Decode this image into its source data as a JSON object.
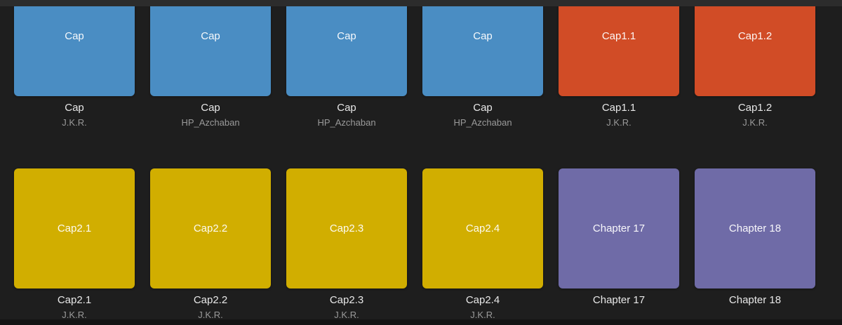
{
  "colors": {
    "background": "#1e1e1e",
    "top_bar": "#2c2c2c",
    "bottom_bar": "#141414",
    "caption_text": "#e8e8e8",
    "subtitle_text": "#9a9a9a",
    "cover_blue": "#4a8dc3",
    "cover_orange": "#d14c26",
    "cover_yellow": "#d1ae00",
    "cover_purple": "#6f6ba7"
  },
  "rows": [
    {
      "cards": [
        {
          "title": "Cap",
          "caption": "Cap",
          "subtitle": "J.K.R.",
          "color_key": "cover_blue"
        },
        {
          "title": "Cap",
          "caption": "Cap",
          "subtitle": "HP_Azchaban",
          "color_key": "cover_blue"
        },
        {
          "title": "Cap",
          "caption": "Cap",
          "subtitle": "HP_Azchaban",
          "color_key": "cover_blue"
        },
        {
          "title": "Cap",
          "caption": "Cap",
          "subtitle": "HP_Azchaban",
          "color_key": "cover_blue"
        },
        {
          "title": "Cap1.1",
          "caption": "Cap1.1",
          "subtitle": "J.K.R.",
          "color_key": "cover_orange"
        },
        {
          "title": "Cap1.2",
          "caption": "Cap1.2",
          "subtitle": "J.K.R.",
          "color_key": "cover_orange"
        }
      ]
    },
    {
      "cards": [
        {
          "title": "Cap2.1",
          "caption": "Cap2.1",
          "subtitle": "J.K.R.",
          "color_key": "cover_yellow"
        },
        {
          "title": "Cap2.2",
          "caption": "Cap2.2",
          "subtitle": "J.K.R.",
          "color_key": "cover_yellow"
        },
        {
          "title": "Cap2.3",
          "caption": "Cap2.3",
          "subtitle": "J.K.R.",
          "color_key": "cover_yellow"
        },
        {
          "title": "Cap2.4",
          "caption": "Cap2.4",
          "subtitle": "J.K.R.",
          "color_key": "cover_yellow"
        },
        {
          "title": "Chapter 17",
          "caption": "Chapter 17",
          "subtitle": "",
          "color_key": "cover_purple"
        },
        {
          "title": "Chapter 18",
          "caption": "Chapter 18",
          "subtitle": "",
          "color_key": "cover_purple"
        }
      ]
    }
  ]
}
